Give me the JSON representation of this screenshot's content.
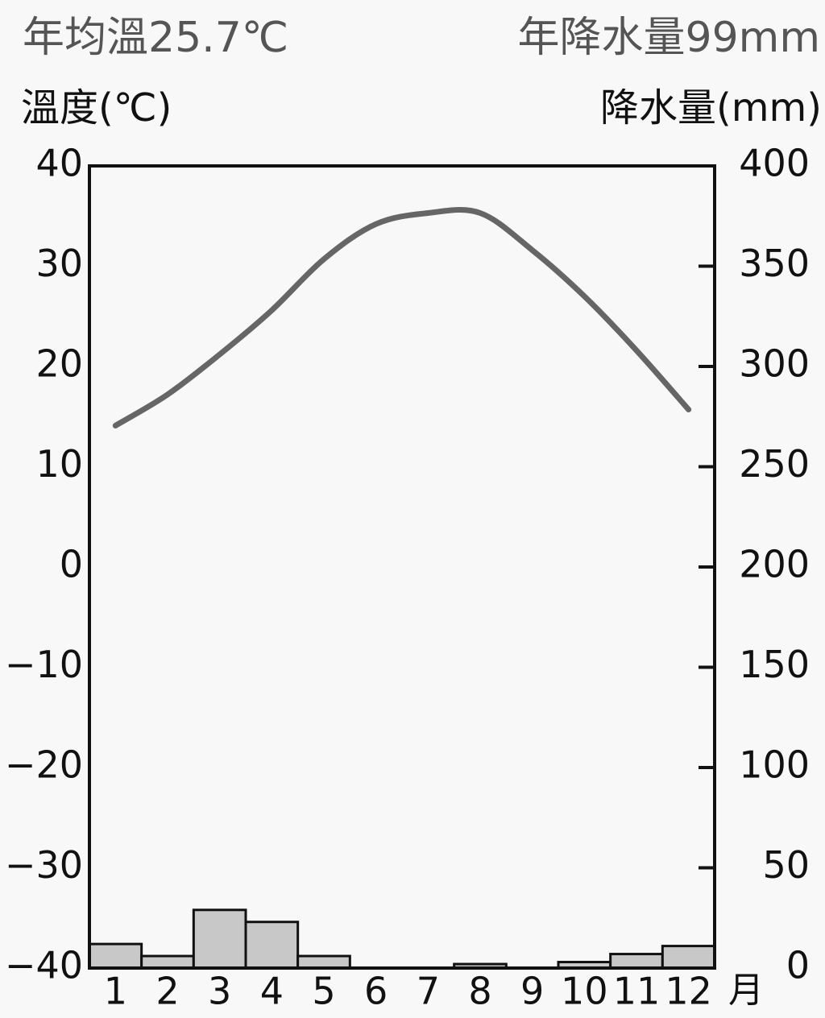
{
  "chart_data": {
    "type": "combo",
    "title": "年均溫25.7℃",
    "subtitle": "年降水量99mm",
    "y_label": "溫度(℃)",
    "y2_label": "降水量(mm)",
    "x_label": "月",
    "categories": [
      "1",
      "2",
      "3",
      "4",
      "5",
      "6",
      "7",
      "8",
      "9",
      "10",
      "11",
      "12"
    ],
    "series": [
      {
        "type": "line",
        "color": "#666666",
        "values": [
          14.1,
          17.2,
          21.2,
          25.6,
          30.7,
          34.2,
          35.3,
          35.3,
          31.6,
          27.0,
          21.6,
          15.7
        ]
      },
      {
        "type": "bar",
        "axis": "y2",
        "color": "#c8c8c8",
        "values": [
          12,
          6,
          29,
          23,
          6,
          0,
          0,
          2,
          0,
          3,
          7,
          11
        ]
      }
    ],
    "ylim": [
      -40,
      40
    ],
    "yticks": [
      {
        "value": -40,
        "label": "−40"
      },
      {
        "value": -30,
        "label": "−30"
      },
      {
        "value": -20,
        "label": "−20"
      },
      {
        "value": -10,
        "label": "−10"
      },
      0,
      10,
      20,
      30,
      40
    ],
    "y2lim": [
      0,
      400
    ],
    "y2ticks": [
      0,
      50,
      100,
      150,
      200,
      250,
      300,
      350,
      400
    ]
  }
}
